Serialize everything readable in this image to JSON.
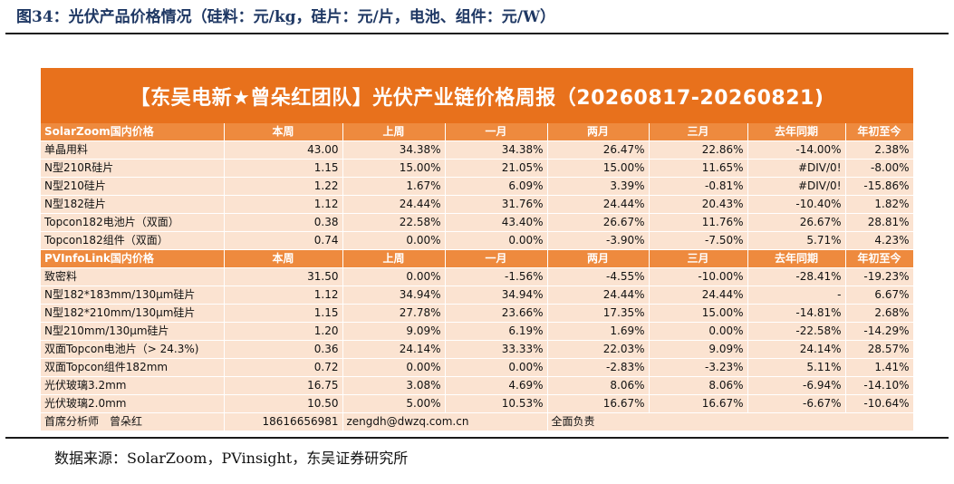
{
  "figure_caption": "图34：光伏产品价格情况（硅料：元/kg，硅片：元/片，电池、组件：元/W）",
  "report_title": "【东吴电新★曾朵红团队】光伏产业链价格周报（20260817-20260821)",
  "columns": [
    "本周",
    "上周",
    "一月",
    "两月",
    "三月",
    "去年同期",
    "年初至今"
  ],
  "sections": [
    {
      "name": "SolarZoom国内价格",
      "rows": [
        {
          "label": "单晶用料",
          "cells": [
            "43.00",
            "34.38%",
            "34.38%",
            "26.47%",
            "22.86%",
            "-14.00%",
            "2.38%"
          ]
        },
        {
          "label": "N型210R硅片",
          "cells": [
            "1.15",
            "15.00%",
            "21.05%",
            "15.00%",
            "11.65%",
            "#DIV/0!",
            "-8.00%"
          ]
        },
        {
          "label": "N型210硅片",
          "cells": [
            "1.22",
            "1.67%",
            "6.09%",
            "3.39%",
            "-0.81%",
            "#DIV/0!",
            "-15.86%"
          ]
        },
        {
          "label": "N型182硅片",
          "cells": [
            "1.12",
            "24.44%",
            "31.76%",
            "24.44%",
            "20.43%",
            "-10.40%",
            "1.82%"
          ]
        },
        {
          "label": "Topcon182电池片（双面）",
          "cells": [
            "0.38",
            "22.58%",
            "43.40%",
            "26.67%",
            "11.76%",
            "26.67%",
            "28.81%"
          ]
        },
        {
          "label": "Topcon182组件（双面）",
          "cells": [
            "0.74",
            "0.00%",
            "0.00%",
            "-3.90%",
            "-7.50%",
            "5.71%",
            "4.23%"
          ]
        }
      ]
    },
    {
      "name": "PVInfoLink国内价格",
      "rows": [
        {
          "label": "致密料",
          "cells": [
            "31.50",
            "0.00%",
            "-1.56%",
            "-4.55%",
            "-10.00%",
            "-28.41%",
            "-19.23%"
          ]
        },
        {
          "label": "N型182*183mm/130μm硅片",
          "cells": [
            "1.12",
            "34.94%",
            "34.94%",
            "24.44%",
            "24.44%",
            "-",
            "6.67%"
          ]
        },
        {
          "label": "N型182*210mm/130μm硅片",
          "cells": [
            "1.15",
            "27.78%",
            "23.66%",
            "17.35%",
            "15.00%",
            "-14.81%",
            "2.68%"
          ]
        },
        {
          "label": "N型210mm/130μm硅片",
          "cells": [
            "1.20",
            "9.09%",
            "6.19%",
            "1.69%",
            "0.00%",
            "-22.58%",
            "-14.29%"
          ]
        },
        {
          "label": "双面Topcon电池片（> 24.3%)",
          "cells": [
            "0.36",
            "24.14%",
            "33.33%",
            "22.03%",
            "9.09%",
            "24.14%",
            "28.57%"
          ]
        },
        {
          "label": "双面Topcon组件182mm",
          "cells": [
            "0.72",
            "0.00%",
            "0.00%",
            "-2.83%",
            "-3.23%",
            "5.11%",
            "1.41%"
          ]
        },
        {
          "label": "光伏玻璃3.2mm",
          "cells": [
            "16.75",
            "3.08%",
            "4.69%",
            "8.06%",
            "8.06%",
            "-6.94%",
            "-14.10%"
          ]
        },
        {
          "label": "光伏玻璃2.0mm",
          "cells": [
            "10.50",
            "5.00%",
            "10.53%",
            "16.67%",
            "16.67%",
            "-6.67%",
            "-10.64%"
          ]
        }
      ]
    }
  ],
  "footer": {
    "analyst": "首席分析师　曾朵红",
    "phone": "18616656981",
    "email": "zengdh@dwzq.com.cn",
    "note": "全面负责"
  },
  "source_note": "数据来源：SolarZoom，PVinsight，东吴证券研究所",
  "colors": {
    "banner": "#e8711c",
    "header_row": "#ee8a3e",
    "body_row": "#fbe3d1",
    "caption": "#1f3864"
  }
}
